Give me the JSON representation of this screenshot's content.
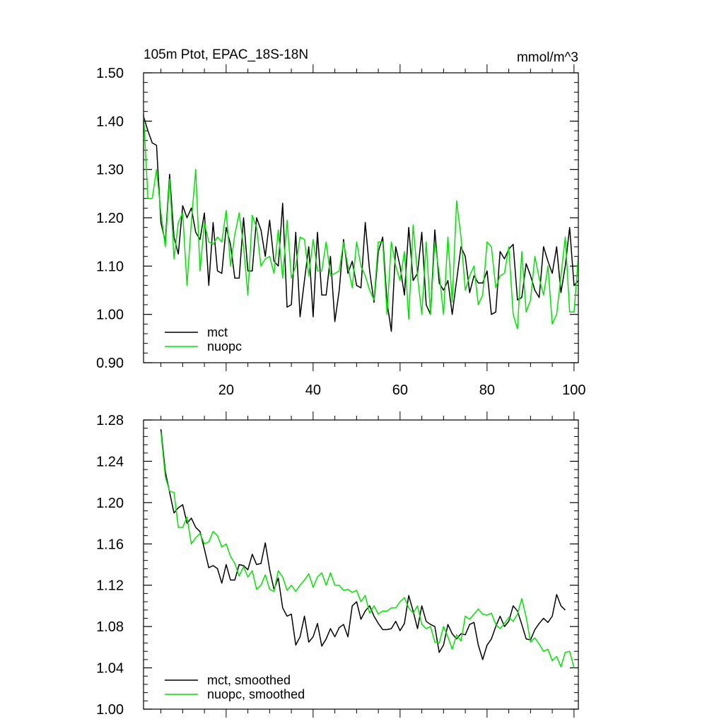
{
  "chart_data": [
    {
      "type": "line",
      "title": "105m Ptot, EPAC_18S-18N",
      "units": "mmol/m^3",
      "xlim": [
        1,
        101
      ],
      "ylim": [
        0.9,
        1.5
      ],
      "x_ticks": [
        20,
        40,
        60,
        80,
        100
      ],
      "y_ticks": [
        "0.90",
        "1.00",
        "1.10",
        "1.20",
        "1.30",
        "1.40",
        "1.50"
      ],
      "legend_position": "bottom-left",
      "x_start": 1,
      "series": [
        {
          "name": "mct",
          "color": "#000000",
          "values": [
            1.41,
            1.38,
            1.355,
            1.35,
            1.19,
            1.15,
            1.29,
            1.16,
            1.125,
            1.225,
            1.2,
            1.22,
            1.17,
            1.155,
            1.21,
            1.06,
            1.19,
            1.09,
            1.085,
            1.18,
            1.145,
            1.075,
            1.075,
            1.2,
            1.09,
            1.09,
            1.2,
            1.175,
            1.12,
            1.195,
            1.11,
            1.1,
            1.23,
            1.015,
            1.02,
            1.17,
            0.995,
            1.07,
            1.14,
            0.995,
            1.17,
            1.04,
            1.04,
            1.12,
            0.985,
            1.05,
            1.155,
            1.085,
            1.11,
            1.06,
            1.055,
            1.19,
            1.09,
            1.025,
            1.13,
            1.16,
            1.025,
            0.965,
            1.14,
            1.1,
            1.04,
            1.18,
            1.07,
            1.085,
            1.17,
            1.02,
            1.0,
            1.175,
            1.065,
            1.05,
            1.07,
            1.0,
            1.07,
            1.14,
            1.12,
            1.045,
            1.08,
            1.065,
            1.065,
            1.09,
            1.0,
            1.005,
            1.13,
            1.115,
            1.135,
            1.145,
            1.03,
            1.035,
            1.105,
            1.08,
            1.05,
            1.035,
            1.14,
            1.11,
            1.085,
            1.14,
            1.045,
            1.1,
            1.18,
            1.06,
            1.07
          ]
        },
        {
          "name": "nuopc",
          "color": "#00e600",
          "values": [
            1.415,
            1.24,
            1.24,
            1.3,
            1.21,
            1.14,
            1.28,
            1.115,
            1.19,
            1.21,
            1.06,
            1.19,
            1.3,
            1.09,
            1.19,
            1.15,
            1.145,
            1.16,
            1.15,
            1.215,
            1.1,
            1.165,
            1.21,
            1.14,
            1.04,
            1.205,
            1.18,
            1.1,
            1.115,
            1.12,
            1.085,
            1.175,
            1.075,
            1.195,
            1.075,
            1.1,
            1.16,
            1.155,
            1.08,
            1.155,
            1.09,
            1.09,
            1.15,
            1.08,
            1.085,
            1.09,
            1.15,
            1.1,
            1.055,
            1.15,
            1.1,
            1.08,
            1.05,
            1.03,
            1.15,
            1.15,
            1.0,
            1.15,
            1.1,
            1.07,
            1.13,
            0.99,
            1.185,
            1.08,
            1.0,
            1.15,
            1.0,
            1.15,
            1.085,
            1.0,
            1.16,
            1.025,
            1.235,
            1.16,
            1.05,
            1.08,
            1.1,
            1.02,
            1.04,
            1.15,
            1.14,
            1.055,
            1.08,
            1.085,
            1.14,
            1.0,
            0.97,
            1.13,
            1.005,
            1.03,
            1.12,
            1.075,
            1.04,
            1.1,
            0.98,
            1.0,
            1.08,
            1.16,
            1.005,
            1.005,
            1.12
          ]
        }
      ]
    },
    {
      "type": "line",
      "xlim": [
        1,
        101
      ],
      "ylim": [
        1.0,
        1.28
      ],
      "y_ticks": [
        "1.00",
        "1.04",
        "1.08",
        "1.12",
        "1.16",
        "1.20",
        "1.24",
        "1.28"
      ],
      "legend_position": "bottom-left",
      "x_start": 5,
      "series": [
        {
          "name": "mct, smoothed",
          "color": "#000000",
          "values": [
            1.271,
            1.23,
            1.21,
            1.19,
            1.195,
            1.198,
            1.18,
            1.185,
            1.176,
            1.172,
            1.155,
            1.137,
            1.139,
            1.136,
            1.122,
            1.14,
            1.125,
            1.125,
            1.14,
            1.139,
            1.135,
            1.15,
            1.14,
            1.141,
            1.161,
            1.135,
            1.116,
            1.127,
            1.098,
            1.09,
            1.092,
            1.062,
            1.07,
            1.09,
            1.065,
            1.07,
            1.083,
            1.061,
            1.068,
            1.078,
            1.07,
            1.079,
            1.082,
            1.07,
            1.1,
            1.104,
            1.087,
            1.095,
            1.1,
            1.09,
            1.083,
            1.077,
            1.077,
            1.078,
            1.085,
            1.076,
            1.083,
            1.11,
            1.095,
            1.078,
            1.1,
            1.085,
            1.082,
            1.08,
            1.055,
            1.062,
            1.082,
            1.073,
            1.068,
            1.073,
            1.072,
            1.082,
            1.084,
            1.062,
            1.048,
            1.062,
            1.068,
            1.08,
            1.09,
            1.08,
            1.085,
            1.1,
            1.095,
            1.082,
            1.068,
            1.067,
            1.077,
            1.083,
            1.088,
            1.084,
            1.09,
            1.111,
            1.1,
            1.096
          ]
        },
        {
          "name": "nuopc, smoothed",
          "color": "#00e600",
          "values": [
            1.268,
            1.225,
            1.211,
            1.21,
            1.176,
            1.176,
            1.186,
            1.16,
            1.166,
            1.17,
            1.16,
            1.162,
            1.172,
            1.168,
            1.157,
            1.16,
            1.148,
            1.141,
            1.129,
            1.138,
            1.128,
            1.134,
            1.116,
            1.12,
            1.13,
            1.116,
            1.114,
            1.134,
            1.128,
            1.115,
            1.12,
            1.114,
            1.12,
            1.125,
            1.131,
            1.118,
            1.128,
            1.132,
            1.12,
            1.132,
            1.12,
            1.12,
            1.115,
            1.116,
            1.113,
            1.115,
            1.104,
            1.11,
            1.093,
            1.1,
            1.092,
            1.095,
            1.095,
            1.098,
            1.098,
            1.104,
            1.108,
            1.098,
            1.093,
            1.1,
            1.082,
            1.078,
            1.08,
            1.065,
            1.064,
            1.08,
            1.07,
            1.058,
            1.072,
            1.066,
            1.09,
            1.087,
            1.092,
            1.097,
            1.092,
            1.091,
            1.093,
            1.082,
            1.078,
            1.083,
            1.089,
            1.085,
            1.092,
            1.107,
            1.089,
            1.065,
            1.069,
            1.063,
            1.056,
            1.058,
            1.047,
            1.051,
            1.041,
            1.055,
            1.056,
            1.04
          ]
        }
      ]
    }
  ]
}
